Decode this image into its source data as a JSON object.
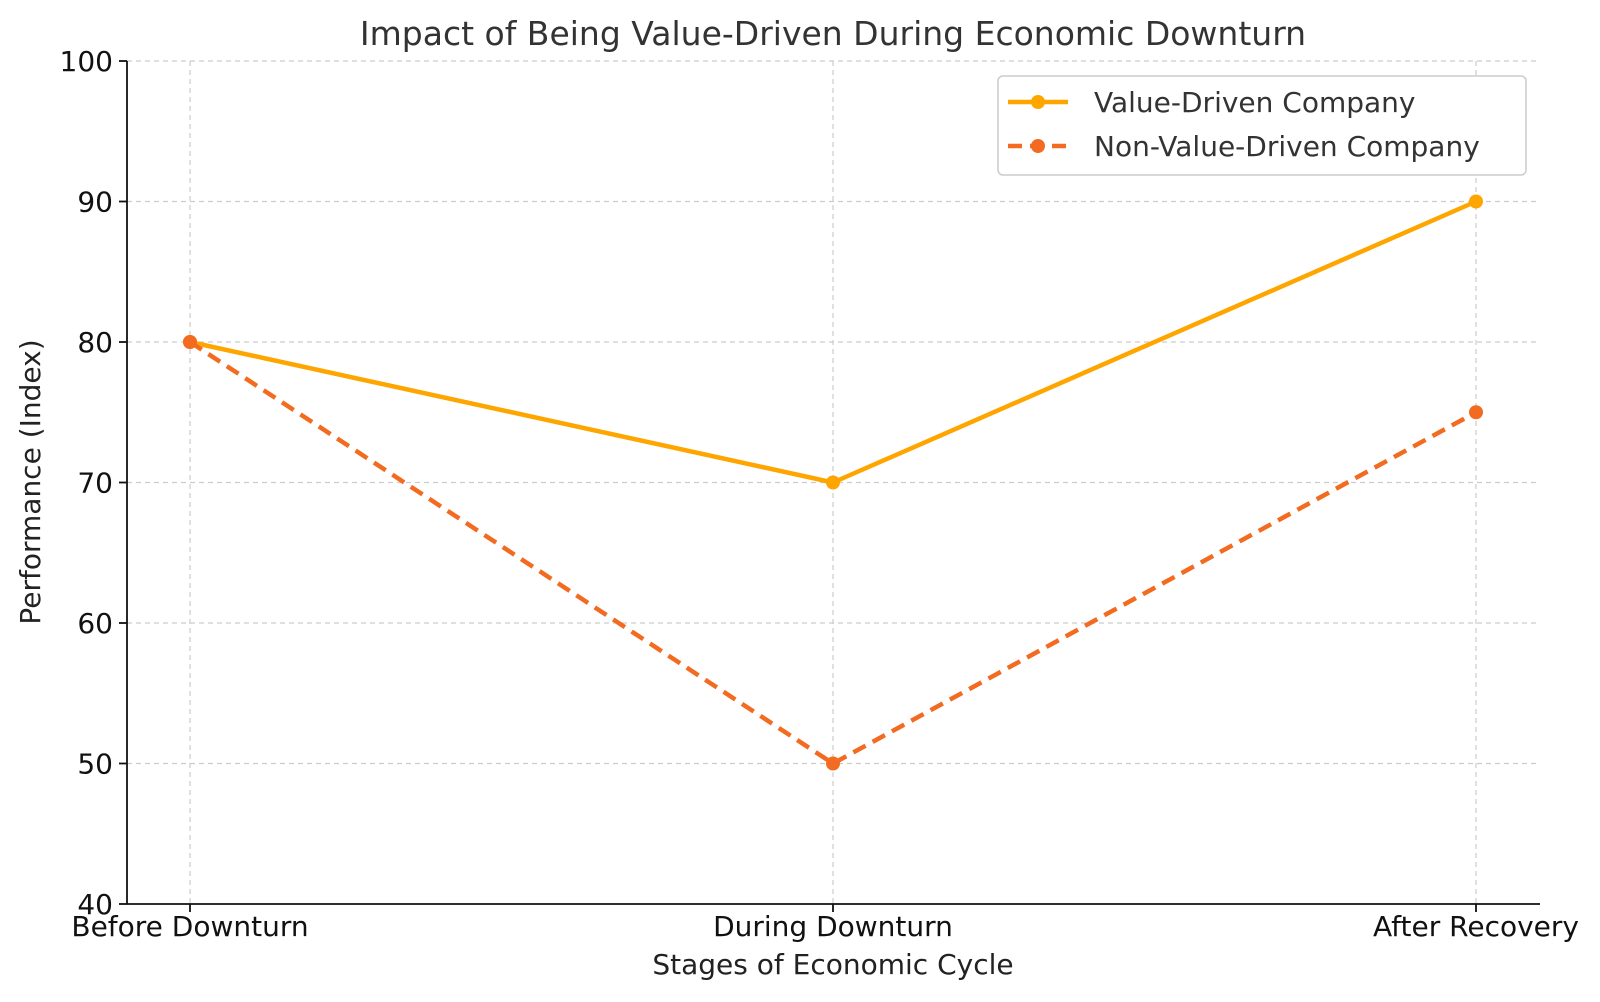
{
  "chart_data": {
    "type": "line",
    "title": "Impact of Being Value-Driven During Economic Downturn",
    "xlabel": "Stages of Economic Cycle",
    "ylabel": "Performance (Index)",
    "categories": [
      "Before Downturn",
      "During Downturn",
      "After Recovery"
    ],
    "ylim": [
      40,
      100
    ],
    "yticks": [
      40,
      50,
      60,
      70,
      80,
      90,
      100
    ],
    "grid": true,
    "legend_position": "top-right",
    "series": [
      {
        "name": "Value-Driven Company",
        "values": [
          80,
          70,
          90
        ],
        "color": "#FFA500",
        "style": "solid",
        "marker": "circle"
      },
      {
        "name": "Non-Value-Driven Company",
        "values": [
          80,
          50,
          75
        ],
        "color": "#F26B21",
        "style": "dashed",
        "marker": "circle"
      }
    ]
  }
}
